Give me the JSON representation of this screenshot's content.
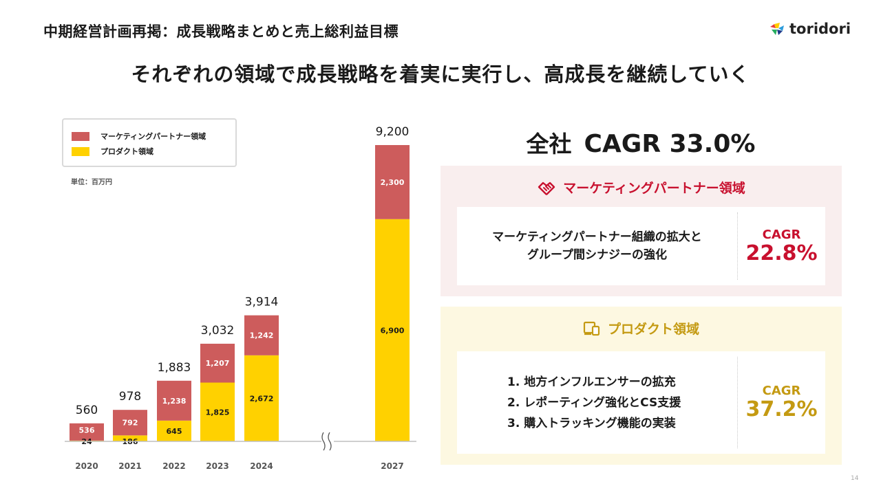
{
  "header": {
    "title": "中期経営計画再掲：成長戦略まとめと売上総利益目標",
    "logo_text": "toridori"
  },
  "headline": "それぞれの領域で成長戦略を着実に実行し、高成長を継続していく",
  "chart_unit": "単位：百万円",
  "chart_data": {
    "type": "bar",
    "stacked": true,
    "categories": [
      "2020",
      "2021",
      "2022",
      "2023",
      "2024",
      "2027"
    ],
    "series": [
      {
        "name": "プロダクト領域",
        "values": [
          24,
          186,
          645,
          1825,
          2672,
          6900
        ],
        "color": "#ffd100"
      },
      {
        "name": "マーケティングパートナー領域",
        "values": [
          536,
          792,
          1238,
          1207,
          1242,
          2300
        ],
        "color": "#cd5c5c"
      }
    ],
    "totals": [
      560,
      978,
      1883,
      3032,
      3914,
      9200
    ],
    "segment_labels": [
      [
        "24",
        "186",
        "645",
        "1,825",
        "2,672",
        "6,900"
      ],
      [
        "536",
        "792",
        "1,238",
        "1,207",
        "1,242",
        "2,300"
      ]
    ],
    "total_labels": [
      "560",
      "978",
      "1,883",
      "3,032",
      "3,914",
      "9,200"
    ],
    "axis_break_between": [
      "2024",
      "2027"
    ],
    "legend_position": "top-left",
    "legend_order": [
      "マーケティングパートナー領域",
      "プロダクト領域"
    ],
    "grid": false
  },
  "total_cagr": {
    "label": "全社",
    "value": "CAGR 33.0%"
  },
  "marketing": {
    "title": "マーケティングパートナー領域",
    "lines": [
      "マーケティングパートナー組織の拡大と",
      "グループ間シナジーの強化"
    ],
    "cagr_label": "CAGR",
    "cagr_value": "22.8%",
    "icon": "handshake-icon",
    "color": "#c8102e"
  },
  "product": {
    "title": "プロダクト領域",
    "items": [
      "1. 地方インフルエンサーの拡充",
      "2. レポーティング強化とCS支援",
      "3. 購入トラッキング機能の実装"
    ],
    "cagr_label": "CAGR",
    "cagr_value": "37.2%",
    "icon": "devices-icon",
    "color": "#c49a12"
  },
  "page_number": "14"
}
